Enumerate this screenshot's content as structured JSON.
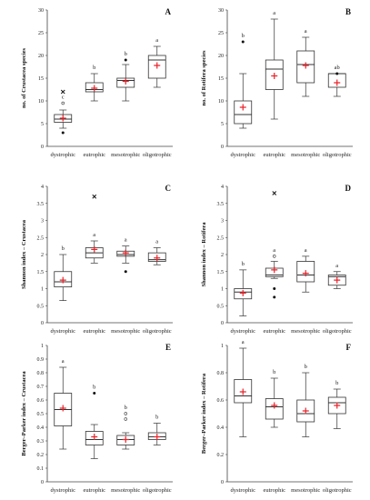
{
  "chart_data": [
    {
      "panel": "A",
      "type": "box",
      "ylabel": "no. of Crustacea species",
      "ylim": [
        0,
        30
      ],
      "yticks": [
        0,
        5,
        10,
        15,
        20,
        25,
        30
      ],
      "categories": [
        "dystrophic",
        "eutrophic",
        "mesotrophic",
        "oligotrophic"
      ],
      "boxes": [
        {
          "min": 4,
          "q1": 5.3,
          "median": 6,
          "q3": 7,
          "max": 8,
          "mean": 6.2,
          "outliers": [
            {
              "v": 3,
              "k": "dot"
            },
            {
              "v": 9.5,
              "k": "open"
            },
            {
              "v": 12,
              "k": "x"
            }
          ],
          "sig": "c"
        },
        {
          "min": 10,
          "q1": 12,
          "median": 12.5,
          "q3": 14,
          "max": 16,
          "mean": 12.8,
          "outliers": [],
          "sig": "b"
        },
        {
          "min": 10,
          "q1": 13,
          "median": 14.5,
          "q3": 15,
          "max": 18,
          "mean": 14.3,
          "outliers": [
            {
              "v": 19,
              "k": "dot"
            }
          ],
          "sig": "b"
        },
        {
          "min": 13,
          "q1": 15,
          "median": 19,
          "q3": 20,
          "max": 22,
          "mean": 17.8,
          "outliers": [],
          "sig": "a"
        }
      ]
    },
    {
      "panel": "B",
      "type": "box",
      "ylabel": "no. of Rotifera species",
      "ylim": [
        0,
        30
      ],
      "yticks": [
        0,
        5,
        10,
        15,
        20,
        25,
        30
      ],
      "categories": [
        "dystrophic",
        "eutrophic",
        "mesotrophic",
        "oligotrophic"
      ],
      "boxes": [
        {
          "min": 4,
          "q1": 5,
          "median": 7,
          "q3": 10,
          "max": 16,
          "mean": 8.6,
          "outliers": [
            {
              "v": 23,
              "k": "dot"
            }
          ],
          "sig": "b"
        },
        {
          "min": 6,
          "q1": 12.5,
          "median": 17,
          "q3": 19,
          "max": 28,
          "mean": 15.5,
          "outliers": [],
          "sig": "a"
        },
        {
          "min": 11,
          "q1": 14,
          "median": 18,
          "q3": 21,
          "max": 24,
          "mean": 17.8,
          "outliers": [],
          "sig": "a"
        },
        {
          "min": 11,
          "q1": 13,
          "median": 16,
          "q3": 16,
          "max": 16,
          "mean": 14,
          "outliers": [
            {
              "v": 16,
              "k": "dot"
            }
          ],
          "sig": "ab"
        }
      ]
    },
    {
      "panel": "C",
      "type": "box",
      "ylabel": "Shannon index – Crustacea",
      "ylim": [
        0,
        4
      ],
      "yticks": [
        0,
        0.5,
        1,
        1.5,
        2,
        2.5,
        3,
        3.5,
        4
      ],
      "categories": [
        "dystrophic",
        "eutrophic",
        "mesotrophic",
        "oligotrophic"
      ],
      "boxes": [
        {
          "min": 0.65,
          "q1": 1.05,
          "median": 1.2,
          "q3": 1.5,
          "max": 2.0,
          "mean": 1.25,
          "outliers": [],
          "sig": "b"
        },
        {
          "min": 1.75,
          "q1": 1.9,
          "median": 2.05,
          "q3": 2.2,
          "max": 2.4,
          "mean": 2.15,
          "outliers": [
            {
              "v": 3.7,
              "k": "x"
            }
          ],
          "sig": "a"
        },
        {
          "min": 1.75,
          "q1": 1.95,
          "median": 2.0,
          "q3": 2.1,
          "max": 2.25,
          "mean": 2.05,
          "outliers": [
            {
              "v": 1.5,
              "k": "dot"
            }
          ],
          "sig": "a"
        },
        {
          "min": 1.7,
          "q1": 1.8,
          "median": 1.85,
          "q3": 2.05,
          "max": 2.2,
          "mean": 1.9,
          "outliers": [],
          "sig": "a"
        }
      ]
    },
    {
      "panel": "D",
      "type": "box",
      "ylabel": "Shannon index – Rotifera",
      "ylim": [
        0,
        4
      ],
      "yticks": [
        0,
        0.5,
        1,
        1.5,
        2,
        2.5,
        3,
        3.5,
        4
      ],
      "categories": [
        "dystrophic",
        "eutrophic",
        "mesotrophic",
        "oligotrophic"
      ],
      "boxes": [
        {
          "min": 0.2,
          "q1": 0.7,
          "median": 0.9,
          "q3": 1.0,
          "max": 1.55,
          "mean": 0.87,
          "outliers": [],
          "sig": "b"
        },
        {
          "min": 1.3,
          "q1": 1.35,
          "median": 1.4,
          "q3": 1.6,
          "max": 1.8,
          "mean": 1.55,
          "outliers": [
            {
              "v": 3.8,
              "k": "x"
            },
            {
              "v": 1.95,
              "k": "open"
            },
            {
              "v": 1.0,
              "k": "dot"
            },
            {
              "v": 0.75,
              "k": "dot"
            }
          ],
          "sig": "a"
        },
        {
          "min": 0.9,
          "q1": 1.2,
          "median": 1.4,
          "q3": 1.8,
          "max": 1.95,
          "mean": 1.45,
          "outliers": [],
          "sig": "a"
        },
        {
          "min": 1.0,
          "q1": 1.1,
          "median": 1.35,
          "q3": 1.4,
          "max": 1.5,
          "mean": 1.25,
          "outliers": [],
          "sig": "a"
        }
      ]
    },
    {
      "panel": "E",
      "type": "box",
      "ylabel": "Berger–Parker index – Crustacea",
      "ylim": [
        0,
        1
      ],
      "yticks": [
        0,
        0.1,
        0.2,
        0.3,
        0.4,
        0.5,
        0.6,
        0.7,
        0.8,
        0.9,
        1
      ],
      "categories": [
        "dystrophic",
        "eutrophic",
        "mesotrophic",
        "oligotrophic"
      ],
      "boxes": [
        {
          "min": 0.24,
          "q1": 0.41,
          "median": 0.53,
          "q3": 0.65,
          "max": 0.84,
          "mean": 0.54,
          "outliers": [],
          "sig": "a"
        },
        {
          "min": 0.17,
          "q1": 0.27,
          "median": 0.31,
          "q3": 0.37,
          "max": 0.42,
          "mean": 0.33,
          "outliers": [
            {
              "v": 0.65,
              "k": "dot"
            }
          ],
          "sig": "b"
        },
        {
          "min": 0.24,
          "q1": 0.27,
          "median": 0.31,
          "q3": 0.34,
          "max": 0.36,
          "mean": 0.31,
          "outliers": [
            {
              "v": 0.5,
              "k": "open"
            },
            {
              "v": 0.46,
              "k": "open"
            }
          ],
          "sig": "b"
        },
        {
          "min": 0.27,
          "q1": 0.31,
          "median": 0.33,
          "q3": 0.36,
          "max": 0.43,
          "mean": 0.33,
          "outliers": [],
          "sig": "b"
        }
      ]
    },
    {
      "panel": "F",
      "type": "box",
      "ylabel": "Berger–Parker index – Rotifera",
      "ylim": [
        0,
        1
      ],
      "yticks": [
        0,
        0.2,
        0.4,
        0.6,
        0.8,
        1
      ],
      "categories": [
        "dystrophic",
        "eutrophic",
        "mesotrophic",
        "oligotrophic"
      ],
      "boxes": [
        {
          "min": 0.33,
          "q1": 0.58,
          "median": 0.63,
          "q3": 0.75,
          "max": 0.98,
          "mean": 0.66,
          "outliers": [],
          "sig": "a"
        },
        {
          "min": 0.4,
          "q1": 0.46,
          "median": 0.55,
          "q3": 0.61,
          "max": 0.76,
          "mean": 0.56,
          "outliers": [],
          "sig": "b"
        },
        {
          "min": 0.33,
          "q1": 0.44,
          "median": 0.5,
          "q3": 0.6,
          "max": 0.8,
          "mean": 0.52,
          "outliers": [],
          "sig": "b"
        },
        {
          "min": 0.39,
          "q1": 0.5,
          "median": 0.58,
          "q3": 0.62,
          "max": 0.68,
          "mean": 0.56,
          "outliers": [],
          "sig": "b"
        }
      ]
    }
  ]
}
